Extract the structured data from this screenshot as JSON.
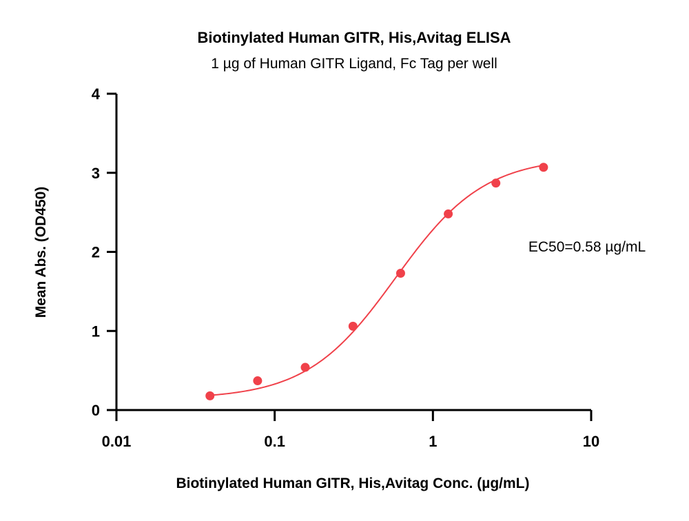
{
  "chart_data": {
    "type": "scatter",
    "title": "Biotinylated Human GITR, His,Avitag ELISA",
    "subtitle": "1 µg of Human GITR Ligand, Fc Tag per well",
    "xlabel": "Biotinylated Human GITR, His,Avitag Conc. (µg/mL)",
    "ylabel": "Mean Abs. (OD450)",
    "x_scale": "log",
    "xlim": [
      0.01,
      10
    ],
    "ylim": [
      0,
      4
    ],
    "x_ticks": [
      0.01,
      0.1,
      1,
      10
    ],
    "x_tick_labels": [
      "0.01",
      "0.1",
      "1",
      "10"
    ],
    "y_ticks": [
      0,
      1,
      2,
      3,
      4
    ],
    "y_tick_labels": [
      "0",
      "1",
      "2",
      "3",
      "4"
    ],
    "grid": false,
    "annotation": "EC50=0.58 µg/mL",
    "series": [
      {
        "x": [
          0.039,
          0.078,
          0.156,
          0.3125,
          0.625,
          1.25,
          2.5,
          5
        ],
        "y": [
          0.18,
          0.37,
          0.54,
          1.06,
          1.73,
          2.48,
          2.87,
          3.07
        ],
        "color": "#f0414a",
        "fit": "4PL",
        "fit_params": {
          "bottom": 0.14,
          "top": 3.2,
          "ec50": 0.58,
          "hill": 1.55
        }
      }
    ]
  }
}
